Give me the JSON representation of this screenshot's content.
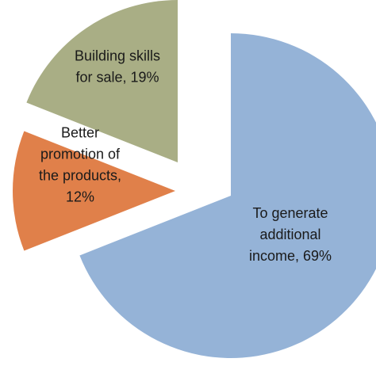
{
  "chart_data": {
    "type": "pie",
    "title": "",
    "exploded": true,
    "legend": "none",
    "slices": [
      {
        "name": "To generate additional income",
        "value": 69,
        "label_lines": [
          "To generate",
          "additional",
          "income, 69%"
        ],
        "color": "#95b3d7"
      },
      {
        "name": "Better promotion of the products",
        "value": 12,
        "label_lines": [
          "Better",
          "promotion of",
          "the products,",
          "12%"
        ],
        "color": "#e0804a"
      },
      {
        "name": "Building skills for sale",
        "value": 19,
        "label_lines": [
          "Building skills",
          "for sale, 19%"
        ],
        "color": "#a9ae85"
      }
    ]
  }
}
